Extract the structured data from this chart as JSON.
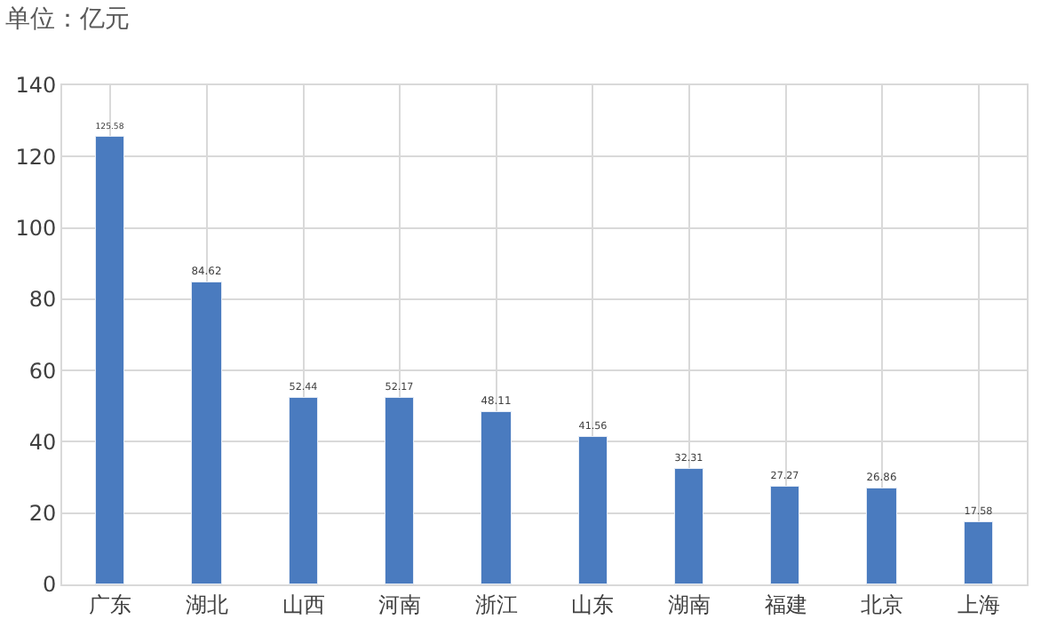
{
  "chart_data": {
    "type": "bar",
    "title": "单位：亿元",
    "categories": [
      "广东",
      "湖北",
      "山西",
      "河南",
      "浙江",
      "山东",
      "湖南",
      "福建",
      "北京",
      "上海"
    ],
    "values": [
      125.58,
      84.62,
      52.44,
      52.17,
      48.11,
      41.56,
      32.31,
      27.27,
      26.86,
      17.58
    ],
    "color": "#4a7bbf",
    "ylim": [
      0,
      140
    ],
    "yticks": [
      0,
      20,
      40,
      60,
      80,
      100,
      120,
      140
    ],
    "grid": true,
    "data_labels": true
  }
}
